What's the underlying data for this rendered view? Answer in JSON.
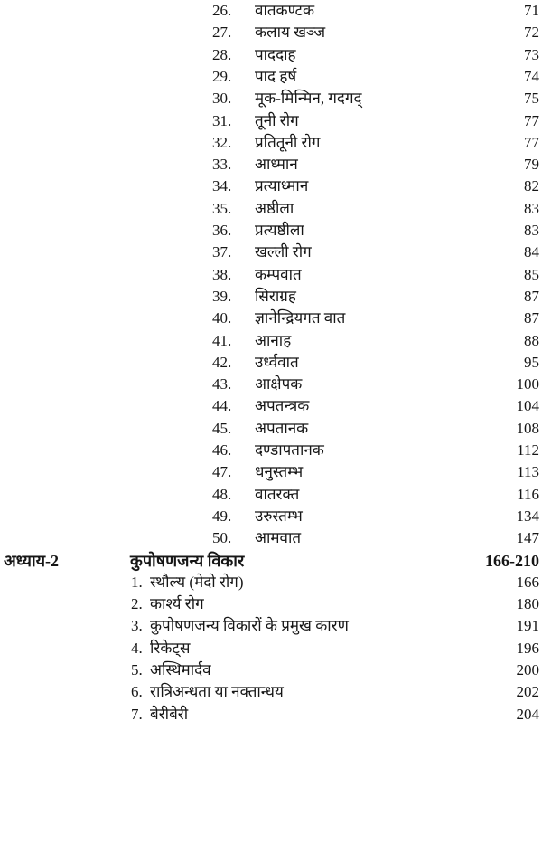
{
  "sections": [
    {
      "num": "26.",
      "title": "वातकण्टक",
      "page": "71"
    },
    {
      "num": "27.",
      "title": "कलाय खञ्ज",
      "page": "72"
    },
    {
      "num": "28.",
      "title": "पाददाह",
      "page": "73"
    },
    {
      "num": "29.",
      "title": "पाद हर्ष",
      "page": "74"
    },
    {
      "num": "30.",
      "title": "मूक-मिन्मिन, गदगद्",
      "page": "75"
    },
    {
      "num": "31.",
      "title": "तूनी रोग",
      "page": "77"
    },
    {
      "num": "32.",
      "title": "प्रतितूनी रोग",
      "page": "77"
    },
    {
      "num": "33.",
      "title": "आध्मान",
      "page": "79"
    },
    {
      "num": "34.",
      "title": "प्रत्याध्मान",
      "page": "82"
    },
    {
      "num": "35.",
      "title": "अष्ठीला",
      "page": "83"
    },
    {
      "num": "36.",
      "title": "प्रत्यष्ठीला",
      "page": "83"
    },
    {
      "num": "37.",
      "title": "खल्ली रोग",
      "page": "84"
    },
    {
      "num": "38.",
      "title": "कम्पवात",
      "page": "85"
    },
    {
      "num": "39.",
      "title": "सिराग्रह",
      "page": "87"
    },
    {
      "num": "40.",
      "title": "ज्ञानेन्द्रियगत वात",
      "page": "87"
    },
    {
      "num": "41.",
      "title": "आनाह",
      "page": "88"
    },
    {
      "num": "42.",
      "title": "उर्ध्ववात",
      "page": "95"
    },
    {
      "num": "43.",
      "title": "आक्षेपक",
      "page": "100"
    },
    {
      "num": "44.",
      "title": "अपतन्त्रक",
      "page": "104"
    },
    {
      "num": "45.",
      "title": "अपतानक",
      "page": "108"
    },
    {
      "num": "46.",
      "title": "दण्डापतानक",
      "page": "112"
    },
    {
      "num": "47.",
      "title": "धनुस्तम्भ",
      "page": "113"
    },
    {
      "num": "48.",
      "title": "वातरक्त",
      "page": "116"
    },
    {
      "num": "49.",
      "title": "उरुस्तम्भ",
      "page": "134"
    },
    {
      "num": "50.",
      "title": "आमवात",
      "page": "147"
    }
  ],
  "chapter": {
    "label": "अध्याय-2",
    "title": "कुपोषणजन्य विकार",
    "pages": "166-210"
  },
  "chapter_sections": [
    {
      "num": "1.",
      "title": "स्थौल्य (मेदो रोग)",
      "page": "166"
    },
    {
      "num": "2.",
      "title": "कार्श्य रोग",
      "page": "180"
    },
    {
      "num": "3.",
      "title": "कुपोषणजन्य विकारों के प्रमुख कारण",
      "page": "191"
    },
    {
      "num": "4.",
      "title": "रिकेट्स",
      "page": "196"
    },
    {
      "num": "5.",
      "title": "अस्थिमार्दव",
      "page": "200"
    },
    {
      "num": "6.",
      "title": "रात्रिअन्धता या नक्तान्धय",
      "page": "202"
    },
    {
      "num": "7.",
      "title": "बेरीबेरी",
      "page": "204"
    }
  ]
}
